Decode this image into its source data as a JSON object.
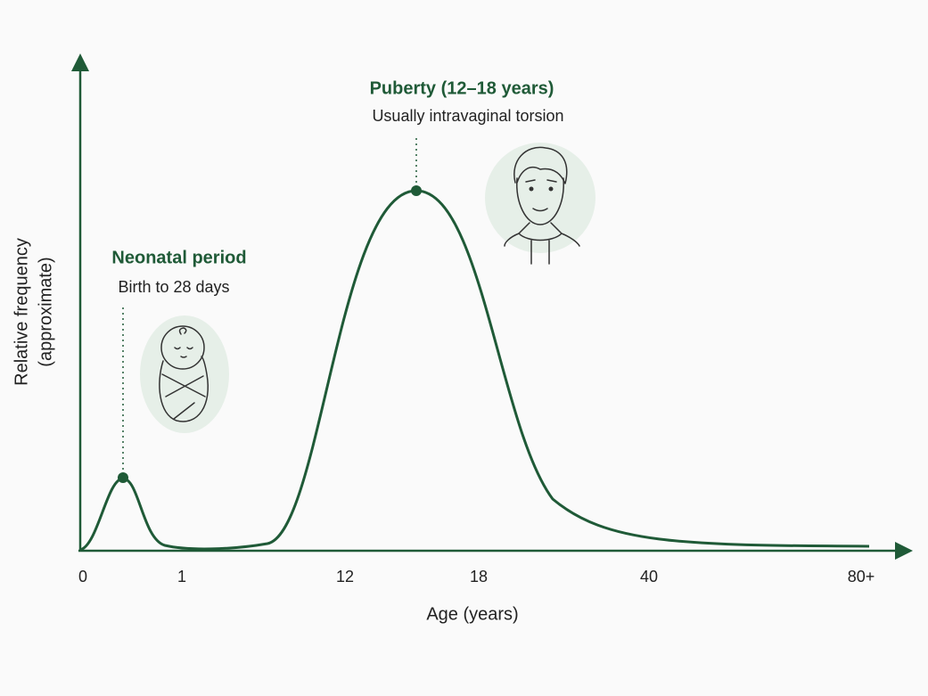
{
  "y_axis_label": [
    "Relative frequency",
    "(approximate)"
  ],
  "x_axis_label": "Age (years)",
  "x_ticks": [
    "0",
    "1",
    "12",
    "18",
    "40",
    "80+"
  ],
  "annotations": [
    {
      "title": "Neonatal period",
      "subtitle": "Birth to 28 days"
    },
    {
      "title": "Puberty (12–18 years)",
      "subtitle": "Usually intravaginal torsion"
    }
  ]
}
